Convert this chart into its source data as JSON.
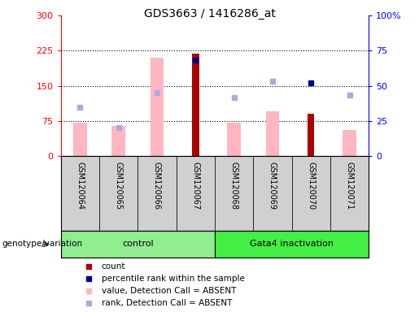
{
  "title": "GDS3663 / 1416286_at",
  "samples": [
    "GSM120064",
    "GSM120065",
    "GSM120066",
    "GSM120067",
    "GSM120068",
    "GSM120069",
    "GSM120070",
    "GSM120071"
  ],
  "count": [
    null,
    null,
    null,
    218,
    null,
    null,
    90,
    null
  ],
  "percentile_rank": [
    null,
    null,
    null,
    68,
    null,
    null,
    52,
    null
  ],
  "value_absent": [
    72,
    65,
    210,
    null,
    72,
    95,
    null,
    55
  ],
  "rank_absent": [
    105,
    60,
    135,
    null,
    125,
    160,
    null,
    130
  ],
  "ylim_left": [
    0,
    300
  ],
  "ylim_right": [
    0,
    100
  ],
  "yticks_left": [
    0,
    75,
    150,
    225,
    300
  ],
  "yticks_right": [
    0,
    25,
    50,
    75,
    100
  ],
  "ytick_labels_left": [
    "0",
    "75",
    "150",
    "225",
    "300"
  ],
  "ytick_labels_right": [
    "0",
    "25",
    "50",
    "75",
    "100%"
  ],
  "hlines": [
    75,
    150,
    225
  ],
  "color_count": "#aa0000",
  "color_percentile": "#00008b",
  "color_value_absent": "#ffb6c1",
  "color_rank_absent": "#aaaadd",
  "color_control": "#90ee90",
  "color_gata4": "#44ee44",
  "genotype_label": "genotype/variation",
  "legend_items": [
    "count",
    "percentile rank within the sample",
    "value, Detection Call = ABSENT",
    "rank, Detection Call = ABSENT"
  ],
  "legend_colors": [
    "#aa0000",
    "#00008b",
    "#ffb6c1",
    "#aaaadd"
  ],
  "right_tick_labels": [
    "0",
    "25",
    "50",
    "75",
    "100%"
  ]
}
